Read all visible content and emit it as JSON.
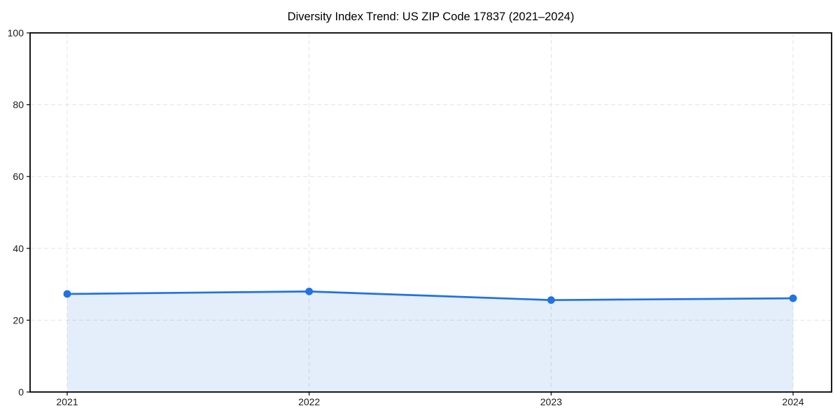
{
  "title": "Diversity Index Trend: US ZIP Code 17837 (2021–2024)",
  "chart_data": {
    "type": "area",
    "x": [
      "2021",
      "2022",
      "2023",
      "2024"
    ],
    "series": [
      {
        "name": "Diversity Index",
        "values": [
          27.3,
          28.0,
          25.6,
          26.1
        ]
      }
    ],
    "title": "Diversity Index Trend: US ZIP Code 17837 (2021–2024)",
    "xlabel": "",
    "ylabel": "",
    "ylim": [
      0,
      100
    ],
    "yticks": [
      0,
      20,
      40,
      60,
      80,
      100
    ],
    "grid": true,
    "grid_style": "dashed",
    "legend_position": "none",
    "marker": "circle",
    "line_width": 2.7,
    "marker_radius": 5.4,
    "colors": {
      "line": "#2172e2",
      "marker": "#2172e2",
      "area_fill": "#2172e2",
      "area_fill_opacity": 0.12,
      "grid": "#e3e3e3",
      "axis": "#000000",
      "tick_label": "#1a1a1a",
      "title_text": "#000000",
      "background": "#ffffff"
    }
  }
}
